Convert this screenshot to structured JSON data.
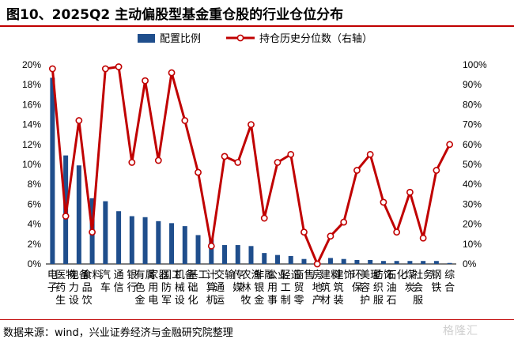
{
  "title": "图10、2025Q2 主动偏股型基金重仓股的行业仓位分布",
  "source": "数据来源：wind，兴业证券经济与金融研究院整理",
  "watermark": "格隆汇",
  "colors": {
    "bar": "#1f4e8c",
    "line": "#c00000",
    "accent": "#c00000"
  },
  "chart_data": {
    "type": "bar+line",
    "legend_position": "top",
    "grid": false,
    "categories": [
      "电子",
      "医药生物",
      "电力设备",
      "食品饮料",
      "汽车",
      "通信",
      "银行",
      "有色金属",
      "家用电器",
      "国防军工",
      "机械设备",
      "基础化工",
      "计算机",
      "交通运输",
      "传媒",
      "农林牧渔",
      "非银金融",
      "公用事业",
      "轻工制造",
      "商贸零售",
      "房地产",
      "建筑材料",
      "建筑装饰",
      "环保",
      "美容护理",
      "纺织服饰",
      "石油石化",
      "煤炭",
      "社会服务",
      "钢铁",
      "综合"
    ],
    "series": [
      {
        "name": "配置比例",
        "type": "bar",
        "axis": "left",
        "values": [
          18.7,
          10.9,
          9.9,
          6.6,
          6.3,
          5.3,
          4.8,
          4.7,
          4.3,
          4.1,
          3.8,
          2.9,
          2.5,
          1.9,
          1.9,
          1.8,
          1.1,
          0.9,
          0.8,
          0.5,
          0.3,
          0.6,
          0.5,
          0.4,
          0.4,
          0.3,
          0.3,
          0.3,
          0.3,
          0.3,
          0.1
        ]
      },
      {
        "name": "持仓历史分位数（右轴）",
        "type": "line",
        "axis": "right",
        "values": [
          98,
          24,
          72,
          16,
          98,
          99,
          51,
          92,
          52,
          96,
          72,
          46,
          9,
          54,
          51,
          70,
          23,
          51,
          55,
          16,
          0,
          14,
          21,
          47,
          55,
          31,
          16,
          36,
          13,
          47,
          60
        ]
      }
    ],
    "y_left": {
      "min": 0,
      "max": 20,
      "step": 2,
      "tick_labels": [
        "0%",
        "2%",
        "4%",
        "6%",
        "8%",
        "10%",
        "12%",
        "14%",
        "16%",
        "18%",
        "20%"
      ]
    },
    "y_right": {
      "min": 0,
      "max": 100,
      "step": 10,
      "tick_labels": [
        "0%",
        "10%",
        "20%",
        "30%",
        "40%",
        "50%",
        "60%",
        "70%",
        "80%",
        "90%",
        "100%"
      ]
    }
  }
}
